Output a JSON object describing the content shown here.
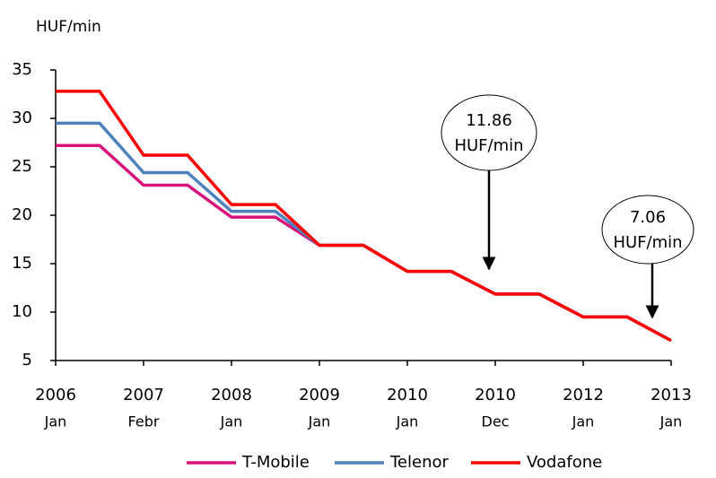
{
  "chart_data": {
    "type": "line",
    "y_label": "HUF/min",
    "categories": [
      [
        "2006",
        "Jan"
      ],
      null,
      [
        "2007",
        "Febr"
      ],
      null,
      [
        "2008",
        "Jan"
      ],
      null,
      [
        "2009",
        "Jan"
      ],
      null,
      [
        "2010",
        "Jan"
      ],
      null,
      [
        "2010",
        "Dec"
      ],
      null,
      [
        "2012",
        "Jan"
      ],
      null,
      [
        "2013",
        "Jan"
      ]
    ],
    "series": [
      {
        "name": "T-Mobile",
        "color": "#d9117b",
        "values": [
          27.2,
          27.2,
          23.1,
          23.1,
          19.8,
          19.8,
          16.9,
          16.9,
          14.2,
          14.2,
          11.86,
          11.86,
          9.5,
          9.5,
          7.06
        ]
      },
      {
        "name": "Telenor",
        "color": "#4f81bd",
        "values": [
          29.5,
          29.5,
          24.4,
          24.4,
          20.4,
          20.4,
          16.9,
          16.9,
          14.2,
          14.2,
          11.86,
          11.86,
          9.5,
          9.5,
          7.06
        ]
      },
      {
        "name": "Vodafone",
        "color": "#ff0000",
        "values": [
          32.8,
          32.8,
          26.2,
          26.2,
          21.1,
          21.1,
          16.9,
          16.9,
          14.2,
          14.2,
          11.86,
          11.86,
          9.5,
          9.5,
          7.06
        ]
      }
    ],
    "ylim": [
      5,
      35
    ],
    "yticks": [
      5,
      10,
      15,
      20,
      25,
      30,
      35
    ],
    "grid": false,
    "legend": "bottom",
    "annotations": [
      {
        "lines": [
          "11.86",
          "HUF/min"
        ]
      },
      {
        "lines": [
          "7.06",
          "HUF/min"
        ]
      }
    ]
  }
}
